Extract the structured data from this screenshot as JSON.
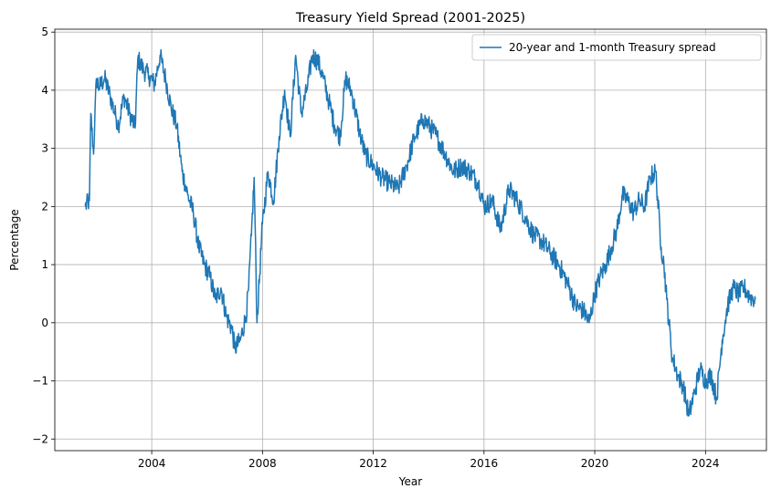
{
  "chart_data": {
    "type": "line",
    "title": "Treasury Yield Spread (2001-2025)",
    "xlabel": "Year",
    "ylabel": "Percentage",
    "xlim": [
      2000.5,
      2026.2
    ],
    "ylim": [
      -2.2,
      5.05
    ],
    "xticks": [
      2004,
      2008,
      2012,
      2016,
      2020,
      2024
    ],
    "yticks": [
      -2,
      -1,
      0,
      1,
      2,
      3,
      4,
      5
    ],
    "ytick_labels": [
      "−2",
      "−1",
      "0",
      "1",
      "2",
      "3",
      "4",
      "5"
    ],
    "grid": true,
    "legend_placement": "top-right",
    "color": "#1f77b4",
    "series": [
      {
        "name": "20-year and 1-month Treasury spread",
        "x": [
          2001.6,
          2001.75,
          2001.8,
          2001.9,
          2002.0,
          2002.1,
          2002.3,
          2002.5,
          2002.7,
          2002.8,
          2003.0,
          2003.2,
          2003.4,
          2003.5,
          2003.7,
          2003.9,
          2004.1,
          2004.3,
          2004.5,
          2004.7,
          2004.9,
          2005.1,
          2005.3,
          2005.5,
          2005.7,
          2005.9,
          2006.1,
          2006.3,
          2006.5,
          2006.7,
          2006.9,
          2007.0,
          2007.2,
          2007.4,
          2007.5,
          2007.6,
          2007.7,
          2007.8,
          2008.0,
          2008.2,
          2008.4,
          2008.6,
          2008.8,
          2009.0,
          2009.2,
          2009.4,
          2009.6,
          2009.8,
          2010.0,
          2010.2,
          2010.4,
          2010.6,
          2010.8,
          2011.0,
          2011.2,
          2011.5,
          2011.7,
          2012.0,
          2012.3,
          2012.6,
          2012.9,
          2013.2,
          2013.5,
          2013.8,
          2014.0,
          2014.3,
          2014.6,
          2014.9,
          2015.2,
          2015.5,
          2015.8,
          2016.0,
          2016.3,
          2016.6,
          2016.9,
          2017.2,
          2017.5,
          2017.8,
          2018.1,
          2018.4,
          2018.7,
          2019.0,
          2019.3,
          2019.6,
          2019.8,
          2020.0,
          2020.2,
          2020.4,
          2020.6,
          2020.8,
          2021.0,
          2021.2,
          2021.4,
          2021.6,
          2021.8,
          2022.0,
          2022.2,
          2022.4,
          2022.5,
          2022.6,
          2022.8,
          2023.0,
          2023.2,
          2023.4,
          2023.6,
          2023.8,
          2024.0,
          2024.2,
          2024.4,
          2024.6,
          2024.8,
          2025.0,
          2025.2,
          2025.4,
          2025.6,
          2025.8
        ],
        "y": [
          2.0,
          2.1,
          3.6,
          2.9,
          4.2,
          4.05,
          4.2,
          3.9,
          3.55,
          3.4,
          3.9,
          3.6,
          3.35,
          4.55,
          4.35,
          4.25,
          4.1,
          4.6,
          4.2,
          3.7,
          3.4,
          2.6,
          2.2,
          1.9,
          1.3,
          1.0,
          0.8,
          0.4,
          0.6,
          0.1,
          -0.1,
          -0.45,
          -0.3,
          0.1,
          0.6,
          1.5,
          2.5,
          0.0,
          1.7,
          2.6,
          2.1,
          3.2,
          4.0,
          3.2,
          4.6,
          3.6,
          4.0,
          4.6,
          4.5,
          4.2,
          3.8,
          3.4,
          3.2,
          4.2,
          4.0,
          3.3,
          2.9,
          2.7,
          2.5,
          2.4,
          2.3,
          2.7,
          3.2,
          3.5,
          3.4,
          3.2,
          2.9,
          2.6,
          2.7,
          2.6,
          2.4,
          2.0,
          2.1,
          1.6,
          2.3,
          2.1,
          1.8,
          1.5,
          1.4,
          1.2,
          1.0,
          0.7,
          0.3,
          0.2,
          0.0,
          0.5,
          0.8,
          1.0,
          1.3,
          1.6,
          2.2,
          2.1,
          1.9,
          2.1,
          2.0,
          2.5,
          2.6,
          1.3,
          1.0,
          0.4,
          -0.6,
          -0.9,
          -1.1,
          -1.6,
          -1.2,
          -0.8,
          -1.0,
          -0.9,
          -1.3,
          -0.3,
          0.3,
          0.6,
          0.5,
          0.6,
          0.45,
          0.4
        ]
      }
    ]
  }
}
